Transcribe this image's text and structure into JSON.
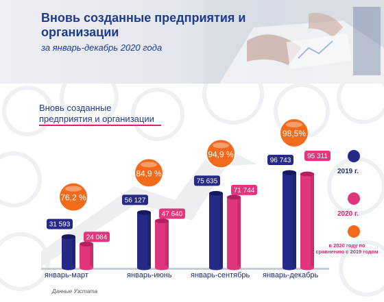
{
  "banner": {
    "title": "Вновь созданные предприятия и организации",
    "subtitle": "за январь-декабрь 2020 года"
  },
  "colors": {
    "series2019": "#262a86",
    "series2020": "#e0377c",
    "percent": "#f26b1d",
    "title": "#1f3a8f"
  },
  "chart_data": {
    "type": "bar",
    "title": "Вновь созданные предприятия и организации",
    "categories": [
      "январь-март",
      "январь-июнь",
      "январь-сентябрь",
      "январь-декабрь"
    ],
    "series": [
      {
        "name": "2019 г.",
        "values": [
          31593,
          56127,
          75635,
          96743
        ],
        "labels": [
          "31 593",
          "56 127",
          "75 635",
          "96 743"
        ]
      },
      {
        "name": "2020 г.",
        "values": [
          24084,
          47640,
          71744,
          95311
        ],
        "labels": [
          "24 084",
          "47 640",
          "71 744",
          "95 311"
        ]
      }
    ],
    "ratio": {
      "name": "в 2020 году по сравнению с 2019 годом",
      "values": [
        76.2,
        84.9,
        94.9,
        98.5
      ],
      "labels": [
        "76,2 %",
        "84,9 %",
        "94,9 %",
        "98,5%"
      ]
    },
    "ylim": [
      0,
      100000
    ],
    "grid": false,
    "legend": "right"
  },
  "legend": {
    "label2019": "2019 г.",
    "label2020": "2020 г.",
    "note": "в 2020 году по сравнению с 2019 годом"
  },
  "source": "Данные Узстата"
}
